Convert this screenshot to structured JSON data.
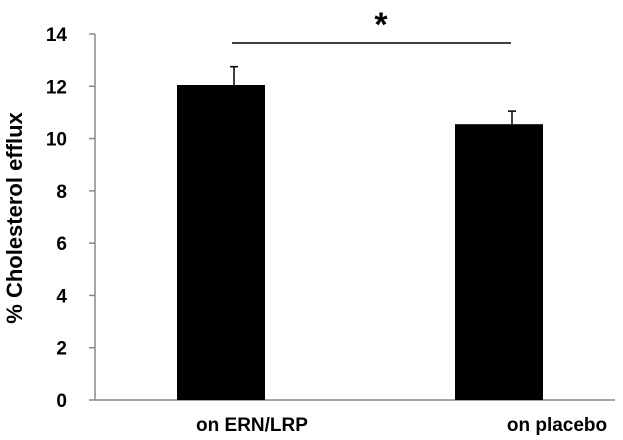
{
  "chart_data": {
    "type": "bar",
    "categories": [
      "on ERN/LRP",
      "on placebo"
    ],
    "values": [
      12.05,
      10.55
    ],
    "errors": [
      0.7,
      0.5
    ],
    "ylabel": "% Cholesterol efflux",
    "xlabel": "",
    "title": "",
    "ylim": [
      0,
      14
    ],
    "yticks": [
      0,
      2,
      4,
      6,
      8,
      10,
      12,
      14
    ],
    "grid": false,
    "bar_color": "#000000",
    "annotation": {
      "type": "significance-bracket",
      "text": "*",
      "between": [
        "on ERN/LRP",
        "on placebo"
      ]
    }
  }
}
